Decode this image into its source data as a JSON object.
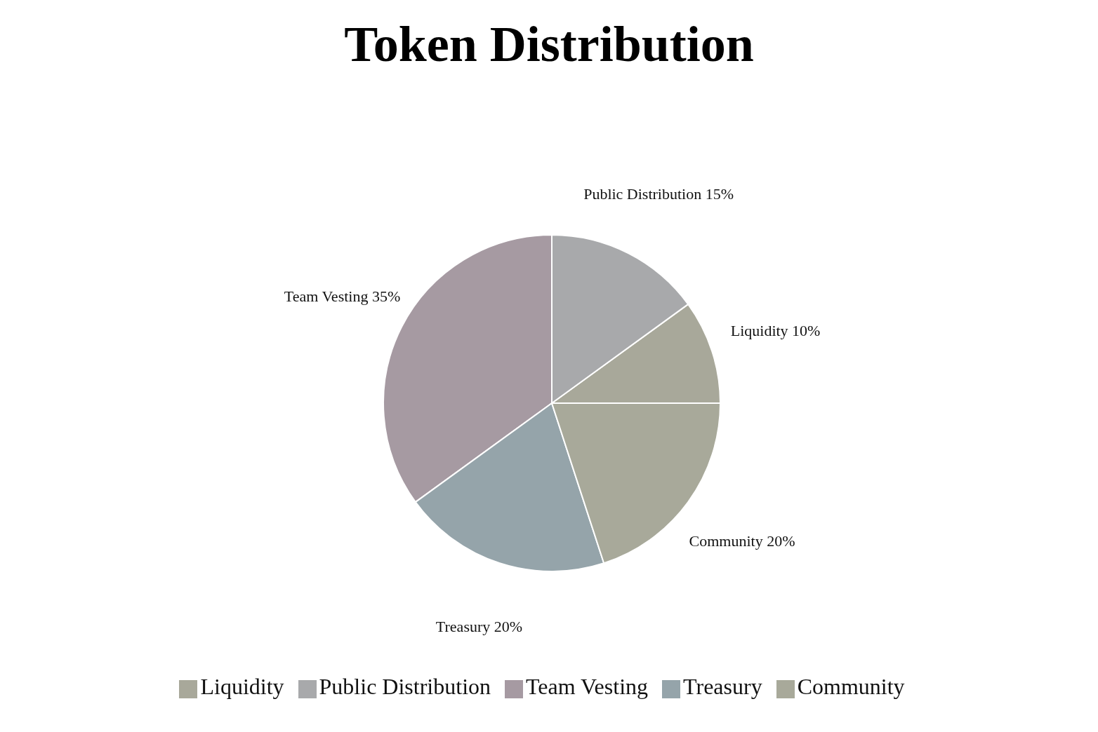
{
  "chart_data": {
    "type": "pie",
    "title": "Token Distribution",
    "categories": [
      "Liquidity",
      "Public Distribution",
      "Team Vesting",
      "Treasury",
      "Community"
    ],
    "values": [
      10,
      15,
      35,
      20,
      20
    ],
    "value_labels": [
      "10%",
      "15%",
      "35%",
      "20%",
      "20%"
    ],
    "colors": [
      "#a8a89a",
      "#a8a9ab",
      "#a69aa2",
      "#95a4aa",
      "#a8a99a"
    ],
    "legend": "bottom"
  }
}
